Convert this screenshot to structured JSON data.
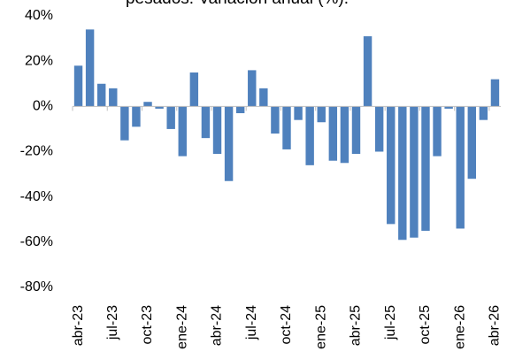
{
  "chart_data": {
    "type": "bar",
    "title": "pesados. Variación anual (%).",
    "categories": [
      "abr-23",
      null,
      null,
      "jul-23",
      null,
      null,
      "oct-23",
      null,
      null,
      "ene-24",
      null,
      null,
      "abr-24",
      null,
      null,
      "jul-24",
      null,
      null,
      "oct-24",
      null,
      null,
      "ene-25",
      null,
      null,
      "abr-25",
      null,
      null,
      "jul-25",
      null,
      null,
      "oct-25",
      null,
      null,
      "ene-26",
      null,
      null,
      "abr-26"
    ],
    "values": [
      18,
      34,
      10,
      8,
      -15,
      -9,
      2,
      -1,
      -10,
      -22,
      15,
      -14,
      -21,
      -33,
      -3,
      16,
      8,
      -12,
      -19,
      -6,
      -26,
      -7,
      -24,
      -25,
      -21,
      31,
      -20,
      -52,
      -59,
      -58,
      -55,
      -22,
      -1,
      -54,
      -32,
      -6,
      12
    ],
    "color": "#4f81bd",
    "ylim": [
      -80,
      40
    ],
    "yticks": [
      {
        "value": -80,
        "label": "-80%"
      },
      {
        "value": -60,
        "label": "-60%"
      },
      {
        "value": -40,
        "label": "-40%"
      },
      {
        "value": -20,
        "label": "-20%"
      },
      {
        "value": 0,
        "label": "0%"
      },
      {
        "value": 20,
        "label": "20%"
      },
      {
        "value": 40,
        "label": "40%"
      }
    ],
    "grid": false
  }
}
